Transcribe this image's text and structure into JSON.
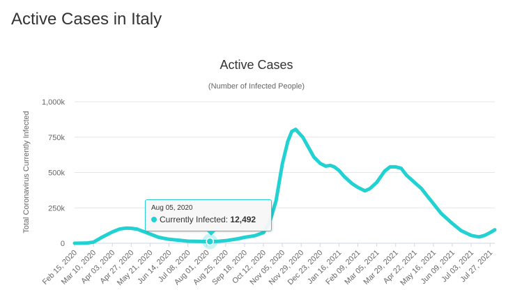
{
  "page": {
    "heading": "Active Cases in Italy"
  },
  "tooltip": {
    "date": "Aug 05, 2020",
    "series_label": "Currently Infected",
    "value": "12,492"
  },
  "colors": {
    "series": "#22d1d1",
    "grid": "#e6e6e6",
    "text": "#666666"
  },
  "chart_data": {
    "type": "line",
    "title": "Active Cases",
    "subtitle": "(Number of Infected People)",
    "ylabel": "Total Coronavirus Currently Infected",
    "xlabel": "",
    "ylim": [
      0,
      1000000
    ],
    "y_ticks": [
      0,
      250000,
      500000,
      750000,
      1000000
    ],
    "y_tick_labels": [
      "0",
      "250k",
      "500k",
      "750k",
      "1,000k"
    ],
    "x_tick_labels": [
      "Feb 15, 2020",
      "Mar 10, 2020",
      "Apr 03, 2020",
      "Apr 27, 2020",
      "May 21, 2020",
      "Jun 14, 2020",
      "Jul 08, 2020",
      "Aug 01, 2020",
      "Aug 25, 2020",
      "Sep 18, 2020",
      "Oct 12, 2020",
      "Nov 05, 2020",
      "Nov 29, 2020",
      "Dec 23, 2020",
      "Jan 16, 2021",
      "Feb 09, 2021",
      "Mar 05, 2021",
      "Mar 29, 2021",
      "Apr 22, 2021",
      "May 16, 2021",
      "Jun 09, 2021",
      "Jul 03, 2021",
      "Jul 27, 2021"
    ],
    "grid": true,
    "legend": "none",
    "highlight": {
      "x": "Aug 05, 2020",
      "y": 12492
    },
    "series": [
      {
        "x": [
          "Feb 15, 2020",
          "Mar 01, 2020",
          "Mar 10, 2020",
          "Mar 20, 2020",
          "Apr 03, 2020",
          "Apr 12, 2020",
          "Apr 20, 2020",
          "Apr 27, 2020",
          "May 05, 2020",
          "May 21, 2020",
          "Jun 01, 2020",
          "Jun 14, 2020",
          "Jul 08, 2020",
          "Aug 01, 2020",
          "Aug 05, 2020",
          "Aug 15, 2020",
          "Aug 25, 2020",
          "Sep 10, 2020",
          "Sep 18, 2020",
          "Oct 01, 2020",
          "Oct 12, 2020",
          "Oct 20, 2020",
          "Oct 28, 2020",
          "Nov 05, 2020",
          "Nov 12, 2020",
          "Nov 17, 2020",
          "Nov 22, 2020",
          "Nov 26, 2020",
          "Dec 01, 2020",
          "Dec 08, 2020",
          "Dec 15, 2020",
          "Dec 23, 2020",
          "Dec 30, 2020",
          "Jan 05, 2021",
          "Jan 10, 2021",
          "Jan 16, 2021",
          "Jan 23, 2021",
          "Feb 02, 2021",
          "Feb 09, 2021",
          "Feb 18, 2021",
          "Feb 24, 2021",
          "Mar 05, 2021",
          "Mar 15, 2021",
          "Mar 22, 2021",
          "Mar 29, 2021",
          "Apr 05, 2021",
          "Apr 12, 2021",
          "Apr 22, 2021",
          "May 01, 2021",
          "May 08, 2021",
          "May 16, 2021",
          "May 26, 2021",
          "Jun 09, 2021",
          "Jun 20, 2021",
          "Jul 03, 2021",
          "Jul 13, 2021",
          "Jul 20, 2021",
          "Jul 27, 2021",
          "Aug 02, 2021"
        ],
        "y": [
          0,
          1000,
          8000,
          40000,
          80000,
          100000,
          107000,
          106000,
          99000,
          65000,
          42000,
          28000,
          15000,
          12500,
          12492,
          13500,
          18000,
          32000,
          42000,
          53000,
          75000,
          150000,
          300000,
          560000,
          720000,
          790000,
          805000,
          780000,
          750000,
          680000,
          610000,
          565000,
          545000,
          550000,
          540000,
          515000,
          470000,
          420000,
          395000,
          370000,
          385000,
          430000,
          510000,
          540000,
          540000,
          530000,
          480000,
          430000,
          385000,
          335000,
          280000,
          210000,
          140000,
          90000,
          55000,
          45000,
          55000,
          75000,
          95000
        ]
      }
    ]
  }
}
